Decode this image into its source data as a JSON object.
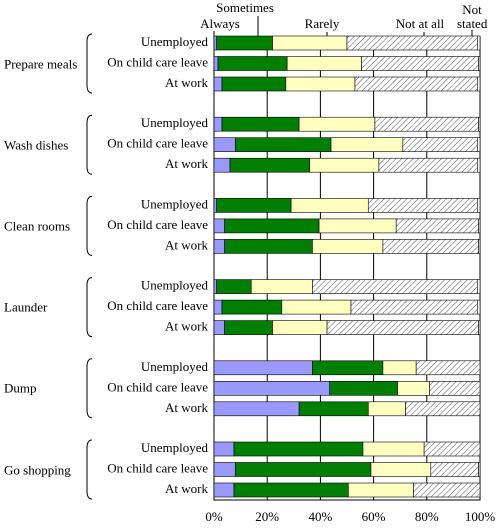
{
  "chart_data": {
    "type": "stacked-barh",
    "groups": [
      "Prepare meals",
      "Wash dishes",
      "Clean rooms",
      "Launder",
      "Dump",
      "Go shopping"
    ],
    "categories": [
      "Unemployed",
      "On child care leave",
      "At work"
    ],
    "series": [
      {
        "name": "Always",
        "color": "#9999ff",
        "values": [
          [
            1,
            1.5,
            3
          ],
          [
            3,
            8,
            6
          ],
          [
            1,
            4,
            4
          ],
          [
            1,
            3,
            4
          ],
          [
            37,
            43.5,
            32
          ],
          [
            7.5,
            8,
            7.5
          ]
        ]
      },
      {
        "name": "Sometimes",
        "color": "#008000",
        "values": [
          [
            21,
            26,
            24
          ],
          [
            29,
            36,
            30
          ],
          [
            28,
            35.5,
            33
          ],
          [
            13,
            22.5,
            18
          ],
          [
            26.5,
            25.5,
            26
          ],
          [
            48.5,
            51,
            43
          ]
        ]
      },
      {
        "name": "Rarely",
        "color": "#ffffc0",
        "values": [
          [
            28,
            28,
            26
          ],
          [
            28.5,
            27,
            26
          ],
          [
            29,
            29,
            26.5
          ],
          [
            23,
            26,
            20.5
          ],
          [
            12.5,
            12,
            14
          ],
          [
            23,
            22.5,
            24.5
          ]
        ]
      },
      {
        "name": "Not at all",
        "color": "#ffffff",
        "pattern": "hatch",
        "values": [
          [
            49,
            44,
            46
          ],
          [
            39,
            28,
            37
          ],
          [
            41,
            31,
            36
          ],
          [
            62,
            47.5,
            57
          ],
          [
            24,
            19,
            28
          ],
          [
            21,
            18,
            25
          ]
        ]
      },
      {
        "name": "Not stated",
        "color": "#ffffff",
        "values": [
          [
            1,
            0.5,
            1
          ],
          [
            0.5,
            1,
            1
          ],
          [
            1,
            0.5,
            0.5
          ],
          [
            1,
            1,
            0.5
          ],
          [
            0,
            0,
            0
          ],
          [
            0,
            0.5,
            0
          ]
        ]
      }
    ],
    "xlim": [
      0,
      100
    ],
    "xticks": [
      {
        "value": 0,
        "label": "0%"
      },
      {
        "value": 20,
        "label": "20%"
      },
      {
        "value": 40,
        "label": "40%"
      },
      {
        "value": 60,
        "label": "60%"
      },
      {
        "value": 80,
        "label": "80%"
      },
      {
        "value": 100,
        "label": "100%"
      }
    ],
    "grid": true
  }
}
